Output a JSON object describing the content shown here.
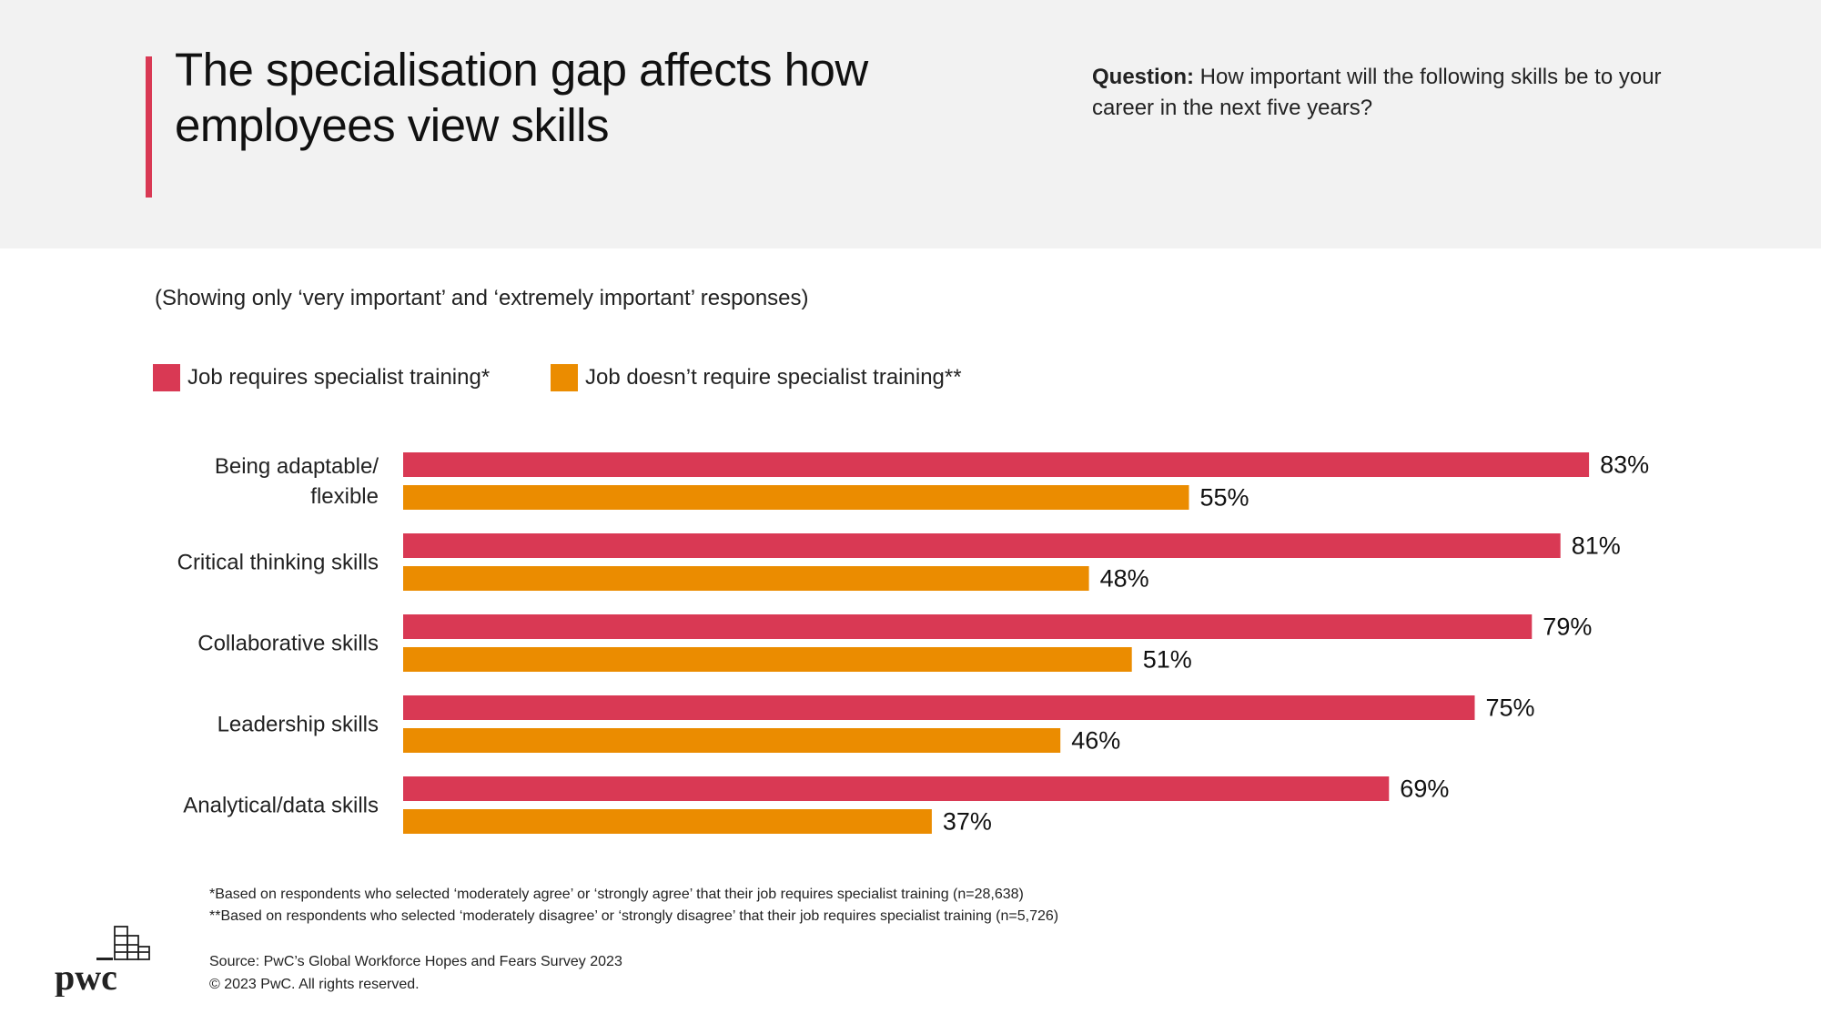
{
  "header": {
    "title_line1": "The specialisation gap affects how",
    "title_line2": "employees view skills",
    "question_label": "Question:",
    "question_text": " How important will the following skills be to your career in the next five years?",
    "accent_color": "#d93954"
  },
  "subtitle": "(Showing only ‘very important’ and ‘extremely important’ responses)",
  "chart_data": {
    "type": "bar",
    "orientation": "horizontal",
    "categories": [
      [
        "Being adaptable/",
        "flexible"
      ],
      [
        "Critical thinking skills"
      ],
      [
        "Collaborative skills"
      ],
      [
        "Leadership skills"
      ],
      [
        "Analytical/data skills"
      ]
    ],
    "series": [
      {
        "name": "Job requires specialist training*",
        "color": "#d93954",
        "values": [
          83,
          81,
          79,
          75,
          69
        ],
        "labels": [
          "83%",
          "81%",
          "79%",
          "75%",
          "69%"
        ]
      },
      {
        "name": "Job doesn’t require specialist training**",
        "color": "#eb8c00",
        "values": [
          55,
          48,
          51,
          46,
          37
        ],
        "labels": [
          "55%",
          "48%",
          "51%",
          "46%",
          "37%"
        ]
      }
    ],
    "xlim": [
      0,
      100
    ],
    "legend": "top-left",
    "grid": false
  },
  "footnotes": {
    "note1": "*Based on respondents who selected ‘moderately agree’ or ‘strongly agree’ that their job requires specialist training (n=28,638)",
    "note2": "**Based on respondents who selected ‘moderately disagree’ or ‘strongly disagree’ that their job requires specialist training (n=5,726)",
    "source": "Source: PwC’s Global Workforce Hopes and Fears Survey 2023",
    "copyright": "© 2023 PwC. All rights reserved."
  },
  "logo": {
    "text": "pwc"
  }
}
